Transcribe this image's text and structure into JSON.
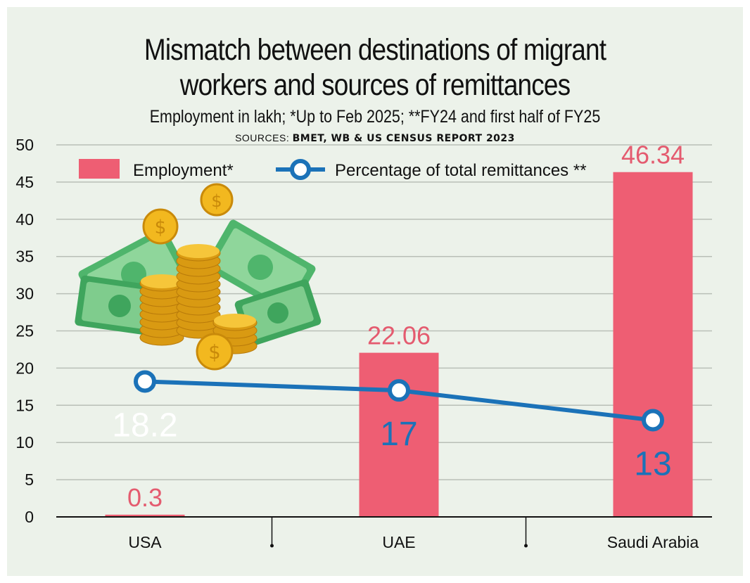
{
  "header": {
    "title_line1": "Mismatch between destinations of migrant",
    "title_line2": "workers and sources of remittances",
    "subtitle": "Employment in lakh;  *Up to Feb 2025; **FY24 and first half of FY25",
    "sources_prefix": "SOURCES: ",
    "sources_names": "BMET, WB & US CENSUS REPORT 2023"
  },
  "colors": {
    "bar": "#ee5e73",
    "bar_label": "#e45b6f",
    "line": "#1b72b8",
    "line_label_dark": "#1b72b8",
    "line_label_light": "#ffffff",
    "grid": "#b9bfb7",
    "frame": "#ecf2ea"
  },
  "chart_data": {
    "type": "bar",
    "title": "Mismatch between destinations of migrant workers and sources of remittances",
    "xlabel": "",
    "ylabel": "",
    "ylim": [
      0,
      50
    ],
    "yticks": [
      0,
      5,
      10,
      15,
      20,
      25,
      30,
      35,
      40,
      45,
      50
    ],
    "grid": true,
    "legend_position": "top-left",
    "categories": [
      "USA",
      "UAE",
      "Saudi Arabia"
    ],
    "series": [
      {
        "name": "Employment*",
        "type": "bar",
        "values": [
          0.3,
          22.06,
          46.34
        ],
        "labels": [
          "0.3",
          "22.06",
          "46.34"
        ]
      },
      {
        "name": "Percentage of total remittances **",
        "type": "line",
        "values": [
          18.2,
          17,
          13
        ],
        "labels": [
          "18.2",
          "17",
          "13"
        ]
      }
    ]
  },
  "illustration": {
    "icon": "money-cash-coins-icon"
  }
}
